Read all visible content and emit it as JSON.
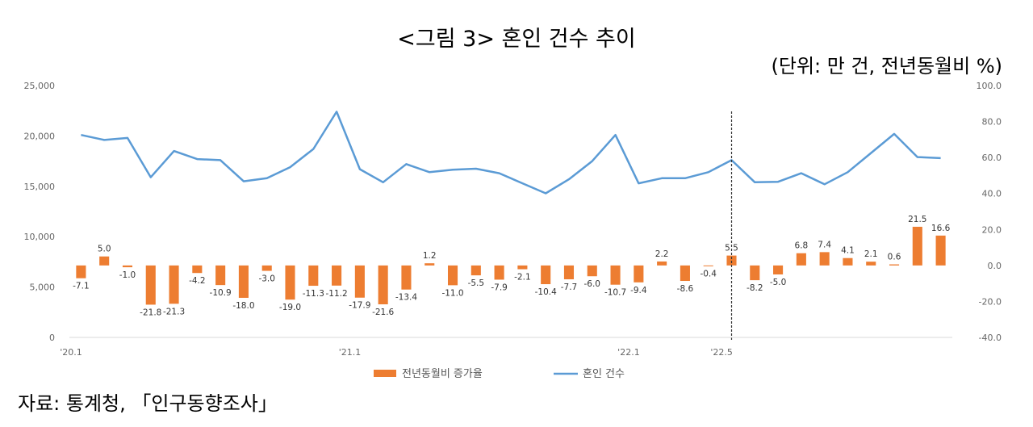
{
  "title": "<그림 3> 혼인 건수 추이",
  "unit": "(단위: 만 건, 전년동월비 %)",
  "source": "자료: 통계청, 「인구동향조사」",
  "colors": {
    "bar": "#ED7D31",
    "line": "#5B9BD5",
    "vline": "#333333"
  },
  "chart_data": {
    "type": "bar+line",
    "x_tick_labels": [
      {
        "index": 0,
        "label": "'20.1"
      },
      {
        "index": 12,
        "label": "'21.1"
      },
      {
        "index": 24,
        "label": "'22.1"
      },
      {
        "index": 28,
        "label": "'22.5"
      }
    ],
    "marker_index": 28,
    "left_axis": {
      "ylim": [
        0,
        25000
      ],
      "ticks": [
        "0",
        "5,000",
        "10,000",
        "15,000",
        "20,000",
        "25,000"
      ],
      "tick_values": [
        0,
        5000,
        10000,
        15000,
        20000,
        25000
      ]
    },
    "right_axis": {
      "ylim": [
        -40,
        100
      ],
      "ticks": [
        "-40.0",
        "-20.0",
        "0.0",
        "20.0",
        "40.0",
        "60.0",
        "80.0",
        "100.0"
      ],
      "tick_values": [
        -40,
        -20,
        0,
        20,
        40,
        60,
        80,
        100
      ]
    },
    "series": [
      {
        "name": "전년동월비 증가율",
        "type": "bar",
        "axis": "right",
        "values": [
          -7.1,
          5.0,
          -1.0,
          -21.8,
          -21.3,
          -4.2,
          -10.9,
          -18.0,
          -3.0,
          -19.0,
          -11.3,
          -11.2,
          -17.9,
          -21.6,
          -13.4,
          1.2,
          -11.0,
          -5.5,
          -7.9,
          -2.1,
          -10.4,
          -7.7,
          -6.0,
          -10.7,
          -9.4,
          2.2,
          -8.6,
          -0.4,
          5.5,
          -8.2,
          -5.0,
          6.8,
          7.4,
          4.1,
          2.1,
          0.6,
          21.5,
          16.6
        ],
        "labels": [
          "-7.1",
          "5.0",
          "-1.0",
          "-21.8",
          "-21.3",
          "-4.2",
          "-10.9",
          "-18.0",
          "-3.0",
          "-19.0",
          "-11.3",
          "-11.2",
          "-17.9",
          "-21.6",
          "-13.4",
          "1.2",
          "-11.0",
          "-5.5",
          "-7.9",
          "-2.1",
          "-10.4",
          "-7.7",
          "-6.0",
          "-10.7",
          "-9.4",
          "2.2",
          "-8.6",
          "-0.4",
          "5.5",
          "-8.2",
          "-5.0",
          "6.8",
          "7.4",
          "4.1",
          "2.1",
          "0.6",
          "21.5",
          "16.6"
        ]
      },
      {
        "name": "혼인 건수",
        "type": "line",
        "axis": "left",
        "values": [
          20100,
          19600,
          19800,
          15900,
          18500,
          17700,
          17600,
          15500,
          15800,
          16900,
          18700,
          22400,
          16700,
          15400,
          17200,
          16400,
          16650,
          16750,
          16300,
          15300,
          14300,
          15700,
          17500,
          20100,
          15300,
          15800,
          15800,
          16400,
          17600,
          15400,
          15450,
          16300,
          15200,
          16400,
          18300,
          20200,
          17900,
          17800
        ]
      }
    ]
  }
}
